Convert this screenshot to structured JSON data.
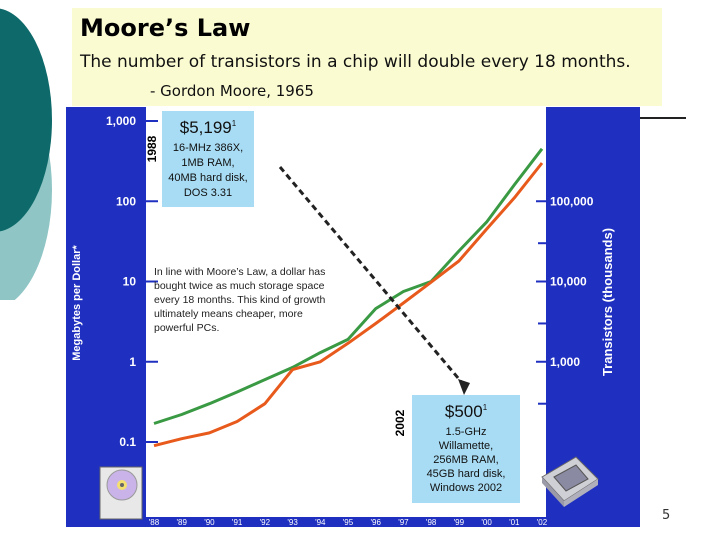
{
  "slide": {
    "title": "Moore’s Law",
    "subtitle": "The number of transistors in a chip will double every 18 months.",
    "quote": "- Gordon Moore, 1965",
    "page_number": "5"
  },
  "colors": {
    "navy": "#1f2fbf",
    "plot_bg": "#ffffff",
    "callout_bg": "#a8dcf4",
    "green": "#3a9a44",
    "orange": "#e85a1c",
    "title_bg": "#fbfbd2",
    "teal": "#0e6a6a"
  },
  "chart_data": {
    "type": "line",
    "x": [
      "'88",
      "'89",
      "'90",
      "'91",
      "'92",
      "'93",
      "'94",
      "'95",
      "'96",
      "'97",
      "'98",
      "'99",
      "'00",
      "'01",
      "'02"
    ],
    "y_left_label": "Megabytes per Dollar*",
    "y_right_label": "Transistors (thousands)",
    "y_left_ticks": [
      "1,000",
      "100",
      "10",
      "1",
      "0.1"
    ],
    "y_left_tick_values": [
      1000,
      100,
      10,
      1,
      0.1
    ],
    "y_right_ticks": [
      "100,000",
      "10,000",
      "1,000"
    ],
    "y_right_tick_values": [
      100000,
      10000,
      1000
    ],
    "ylim_left": [
      0.1,
      1000
    ],
    "yscale": "log",
    "series": [
      {
        "color": "#3a9a44",
        "values": [
          0.17,
          0.22,
          0.3,
          0.42,
          0.6,
          0.85,
          1.3,
          1.9,
          4.6,
          7.5,
          10,
          24,
          55,
          160,
          450
        ]
      },
      {
        "color": "#e85a1c",
        "values": [
          0.09,
          0.11,
          0.13,
          0.18,
          0.3,
          0.8,
          1.0,
          1.7,
          3.0,
          5.4,
          9.8,
          18,
          45,
          110,
          300
        ]
      }
    ],
    "year_markers": [
      {
        "label": "1988",
        "x_index": 0
      },
      {
        "label": "2002",
        "x_index": 14
      }
    ],
    "annotation_text": [
      "In line with Moore’s Law, a dollar has",
      "bought twice as much storage space",
      "every 18 months. This kind of growth",
      "ultimately means cheaper, more",
      "powerful PCs."
    ],
    "callout_1988": [
      "$5,199",
      "16-MHz 386X,",
      "1MB RAM,",
      "40MB hard disk,",
      "DOS 3.31"
    ],
    "callout_1988_sup": "1",
    "callout_2002": [
      "$500",
      "1.5-GHz",
      "Willamette,",
      "256MB RAM,",
      "45GB hard disk,",
      "Windows 2002"
    ],
    "callout_2002_sup": "1"
  }
}
